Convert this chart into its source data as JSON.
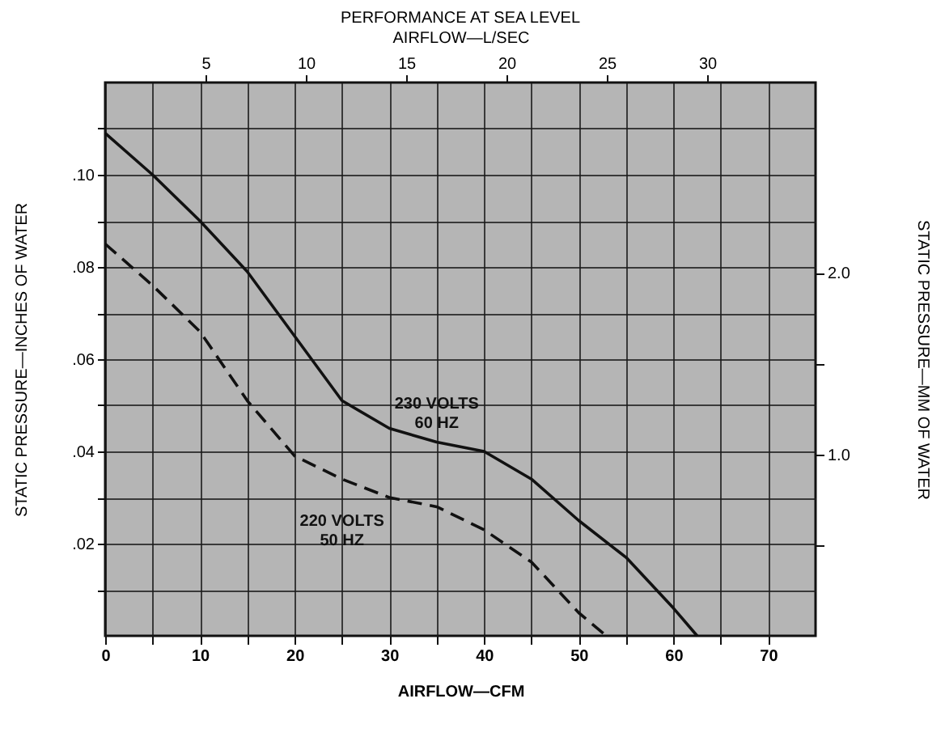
{
  "chart_data": {
    "type": "line",
    "title": "PERFORMANCE AT SEA LEVEL",
    "x2label": "AIRFLOW—L/SEC",
    "xlabel": "AIRFLOW—CFM",
    "ylabel": "STATIC PRESSURE—INCHES OF WATER",
    "y2label": "STATIC PRESSURE—MM OF WATER",
    "series": [
      {
        "name": "230 VOLTS\n60 HZ",
        "color": "#111111",
        "line_style": "solid",
        "x": [
          0,
          5,
          10,
          15,
          20,
          25,
          30,
          35,
          40,
          45,
          50,
          55,
          60,
          62.5
        ],
        "values": [
          0.109,
          0.1,
          0.09,
          0.079,
          0.065,
          0.051,
          0.045,
          0.042,
          0.04,
          0.034,
          0.025,
          0.017,
          0.006,
          0
        ]
      },
      {
        "name": "220 VOLTS\n50 HZ",
        "color": "#111111",
        "line_style": "dashed",
        "x": [
          0,
          5,
          10,
          15,
          20,
          25,
          30,
          35,
          40,
          45,
          50,
          52.9
        ],
        "values": [
          0.085,
          0.076,
          0.066,
          0.051,
          0.039,
          0.034,
          0.03,
          0.028,
          0.023,
          0.016,
          0.005,
          0
        ]
      }
    ],
    "xlim": [
      0,
      75
    ],
    "xticks": [
      0,
      {
        "value": 5,
        "label": null
      },
      10,
      {
        "value": 15,
        "label": null
      },
      20,
      {
        "value": 25,
        "label": null
      },
      30,
      {
        "value": 35,
        "label": null
      },
      40,
      {
        "value": 45,
        "label": null
      },
      50,
      {
        "value": 55,
        "label": null
      },
      60,
      {
        "value": 65,
        "label": null
      },
      70
    ],
    "ylim": [
      0,
      0.12
    ],
    "yticks": [
      {
        "value": 0.01,
        "label": null
      },
      {
        "value": 0.02,
        "label": ".02"
      },
      {
        "value": 0.03,
        "label": null
      },
      {
        "value": 0.04,
        "label": ".04"
      },
      {
        "value": 0.05,
        "label": null
      },
      {
        "value": 0.06,
        "label": ".06"
      },
      {
        "value": 0.07,
        "label": null
      },
      {
        "value": 0.08,
        "label": ".08"
      },
      {
        "value": 0.09,
        "label": null
      },
      {
        "value": 0.1,
        "label": ".10"
      },
      {
        "value": 0.11,
        "label": null
      }
    ],
    "x2lim": [
      0,
      35.4
    ],
    "x2ticks": [
      5,
      10,
      15,
      20,
      25,
      30
    ],
    "y2lim": [
      0,
      3.05
    ],
    "y2ticks": [
      {
        "value": 0.5,
        "label": null
      },
      {
        "value": 1,
        "label": "1.0"
      },
      {
        "value": 1.5,
        "label": null
      },
      {
        "value": 2,
        "label": "2.0"
      }
    ],
    "grid": true,
    "legend": false
  }
}
